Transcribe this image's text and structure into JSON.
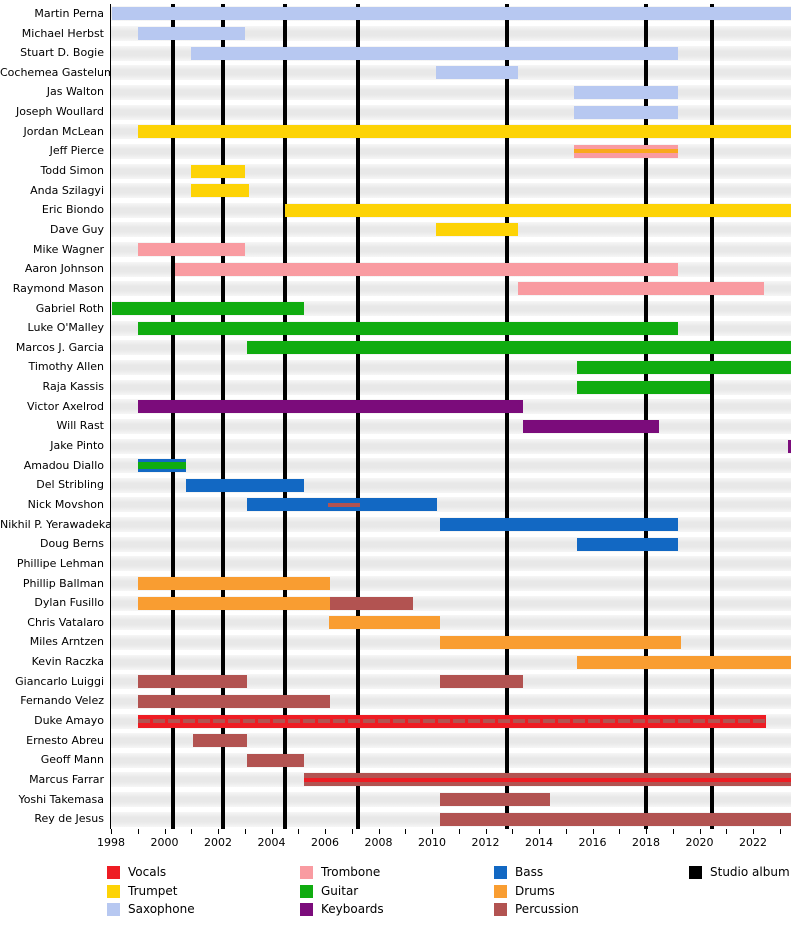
{
  "chart_data": {
    "type": "timeline",
    "x_axis": {
      "min": 1998,
      "max": 2023.42,
      "minor_tick_step": 1,
      "tick_labels": [
        "1998",
        "2000",
        "2002",
        "2004",
        "2006",
        "2008",
        "2010",
        "2012",
        "2014",
        "2016",
        "2018",
        "2020",
        "2022"
      ],
      "label_years": [
        1998,
        2000,
        2002,
        2004,
        2006,
        2008,
        2010,
        2012,
        2014,
        2016,
        2018,
        2020,
        2022
      ]
    },
    "grid": false,
    "legend_position": "bottom",
    "instrument_colors": {
      "Vocals": "#ee1c23",
      "Trumpet": "#fdd306",
      "Saxophone": "#b7c8f1",
      "Trombone": "#f99ba1",
      "Guitar": "#10ac10",
      "Keyboards": "#7b0c7b",
      "Bass": "#1268c3",
      "Drums": "#f99d31",
      "Percussion": "#b25351",
      "Studio album": "#000000"
    },
    "legend_columns": [
      [
        "Vocals",
        "Trumpet",
        "Saxophone"
      ],
      [
        "Trombone",
        "Guitar",
        "Keyboards"
      ],
      [
        "Bass",
        "Drums",
        "Percussion"
      ],
      [
        "Studio album"
      ]
    ],
    "studio_album_years": [
      2000.3,
      2002.2,
      2004.5,
      2007.25,
      2012.8,
      2018.0,
      2020.45
    ],
    "members": [
      {
        "name": "Martin Perna",
        "segments": [
          {
            "instrument": "Saxophone",
            "start": 1998.05,
            "end": 2023.42
          }
        ]
      },
      {
        "name": "Michael Herbst",
        "segments": [
          {
            "instrument": "Saxophone",
            "start": 1999.0,
            "end": 2003.0
          }
        ]
      },
      {
        "name": "Stuart D. Bogie",
        "segments": [
          {
            "instrument": "Saxophone",
            "start": 2001.0,
            "end": 2019.2
          }
        ]
      },
      {
        "name": "Cochemea Gastelum",
        "segments": [
          {
            "instrument": "Saxophone",
            "start": 2010.15,
            "end": 2013.2
          }
        ]
      },
      {
        "name": "Jas Walton",
        "segments": [
          {
            "instrument": "Saxophone",
            "start": 2015.3,
            "end": 2019.2
          }
        ]
      },
      {
        "name": "Joseph Woullard",
        "segments": [
          {
            "instrument": "Saxophone",
            "start": 2015.3,
            "end": 2019.2
          }
        ]
      },
      {
        "name": "Jordan McLean",
        "segments": [
          {
            "instrument": "Trumpet",
            "start": 1999.0,
            "end": 2023.42
          }
        ]
      },
      {
        "name": "Jeff Pierce",
        "segments": [
          {
            "instrument": "Trombone",
            "start": 2015.3,
            "end": 2019.2,
            "stripe": {
              "instrument": "Trumpet",
              "start": 2015.3,
              "end": 2019.2,
              "color": "#f9a81c"
            }
          }
        ]
      },
      {
        "name": "Todd Simon",
        "segments": [
          {
            "instrument": "Trumpet",
            "start": 2001.0,
            "end": 2003.0
          }
        ]
      },
      {
        "name": "Anda Szilagyi",
        "segments": [
          {
            "instrument": "Trumpet",
            "start": 2001.0,
            "end": 2003.15
          }
        ]
      },
      {
        "name": "Eric Biondo",
        "segments": [
          {
            "instrument": "Trumpet",
            "start": 2004.5,
            "end": 2023.42
          }
        ]
      },
      {
        "name": "Dave Guy",
        "segments": [
          {
            "instrument": "Trumpet",
            "start": 2010.15,
            "end": 2013.2
          }
        ]
      },
      {
        "name": "Mike Wagner",
        "segments": [
          {
            "instrument": "Trombone",
            "start": 1999.0,
            "end": 2003.0
          }
        ]
      },
      {
        "name": "Aaron Johnson",
        "segments": [
          {
            "instrument": "Trombone",
            "start": 2000.4,
            "end": 2019.2
          }
        ]
      },
      {
        "name": "Raymond Mason",
        "segments": [
          {
            "instrument": "Trombone",
            "start": 2013.2,
            "end": 2022.4
          }
        ]
      },
      {
        "name": "Gabriel Roth",
        "segments": [
          {
            "instrument": "Guitar",
            "start": 1998.05,
            "end": 2005.2
          }
        ]
      },
      {
        "name": "Luke O'Malley",
        "segments": [
          {
            "instrument": "Guitar",
            "start": 1999.0,
            "end": 2019.2
          }
        ]
      },
      {
        "name": "Marcos J. Garcia",
        "segments": [
          {
            "instrument": "Guitar",
            "start": 2003.1,
            "end": 2023.42
          }
        ]
      },
      {
        "name": "Timothy Allen",
        "segments": [
          {
            "instrument": "Guitar",
            "start": 2015.4,
            "end": 2023.42
          }
        ]
      },
      {
        "name": "Raja Kassis",
        "segments": [
          {
            "instrument": "Guitar",
            "start": 2015.4,
            "end": 2020.4
          }
        ]
      },
      {
        "name": "Victor Axelrod",
        "segments": [
          {
            "instrument": "Keyboards",
            "start": 1999.0,
            "end": 2013.4
          }
        ]
      },
      {
        "name": "Will Rast",
        "segments": [
          {
            "instrument": "Keyboards",
            "start": 2013.4,
            "end": 2018.5
          }
        ]
      },
      {
        "name": "Jake Pinto",
        "segments": [
          {
            "instrument": "Keyboards",
            "start": 2023.3,
            "end": 2023.42
          }
        ]
      },
      {
        "name": "Amadou Diallo",
        "segments": [
          {
            "instrument": "Bass",
            "start": 1999.0,
            "end": 2000.8,
            "stripe": {
              "instrument": "Guitar",
              "start": 1999.0,
              "end": 2000.8,
              "thick": true
            }
          }
        ]
      },
      {
        "name": "Del Stribling",
        "segments": [
          {
            "instrument": "Bass",
            "start": 2000.8,
            "end": 2005.2
          }
        ]
      },
      {
        "name": "Nick Movshon",
        "segments": [
          {
            "instrument": "Bass",
            "start": 2003.1,
            "end": 2010.2,
            "stripe": {
              "instrument": "Percussion",
              "start": 2006.1,
              "end": 2007.3
            }
          }
        ]
      },
      {
        "name": "Nikhil P. Yerawadekar",
        "segments": [
          {
            "instrument": "Bass",
            "start": 2010.3,
            "end": 2019.2
          }
        ]
      },
      {
        "name": "Doug Berns",
        "segments": [
          {
            "instrument": "Bass",
            "start": 2015.4,
            "end": 2019.2
          }
        ]
      },
      {
        "name": "Phillipe Lehman",
        "segments": []
      },
      {
        "name": "Phillip Ballman",
        "segments": [
          {
            "instrument": "Drums",
            "start": 1999.0,
            "end": 2006.2
          }
        ]
      },
      {
        "name": "Dylan Fusillo",
        "segments": [
          {
            "instrument": "Drums",
            "start": 1999.0,
            "end": 2006.2
          },
          {
            "instrument": "Percussion",
            "start": 2006.2,
            "end": 2009.3
          }
        ]
      },
      {
        "name": "Chris Vatalaro",
        "segments": [
          {
            "instrument": "Drums",
            "start": 2006.15,
            "end": 2010.3
          }
        ]
      },
      {
        "name": "Miles Arntzen",
        "segments": [
          {
            "instrument": "Drums",
            "start": 2010.3,
            "end": 2019.3
          }
        ]
      },
      {
        "name": "Kevin Raczka",
        "segments": [
          {
            "instrument": "Drums",
            "start": 2015.4,
            "end": 2023.42
          }
        ]
      },
      {
        "name": "Giancarlo Luiggi",
        "segments": [
          {
            "instrument": "Percussion",
            "start": 1999.0,
            "end": 2003.1
          },
          {
            "instrument": "Percussion",
            "start": 2010.3,
            "end": 2013.4
          }
        ]
      },
      {
        "name": "Fernando Velez",
        "segments": [
          {
            "instrument": "Percussion",
            "start": 1999.0,
            "end": 2006.2
          }
        ]
      },
      {
        "name": "Duke Amayo",
        "segments": [
          {
            "instrument": "Vocals",
            "start": 1999.0,
            "end": 2022.5,
            "stripe": {
              "instrument": "Percussion",
              "start": 1999.0,
              "end": 2022.5,
              "dashed": true
            }
          }
        ]
      },
      {
        "name": "Ernesto Abreu",
        "segments": [
          {
            "instrument": "Percussion",
            "start": 2001.05,
            "end": 2003.1
          }
        ]
      },
      {
        "name": "Geoff Mann",
        "segments": [
          {
            "instrument": "Percussion",
            "start": 2003.1,
            "end": 2005.2
          }
        ]
      },
      {
        "name": "Marcus Farrar",
        "segments": [
          {
            "instrument": "Percussion",
            "start": 2005.2,
            "end": 2023.42,
            "stripe": {
              "instrument": "Vocals",
              "start": 2005.2,
              "end": 2023.42
            }
          }
        ]
      },
      {
        "name": "Yoshi Takemasa",
        "segments": [
          {
            "instrument": "Percussion",
            "start": 2010.3,
            "end": 2014.4
          }
        ]
      },
      {
        "name": "Rey de Jesus",
        "segments": [
          {
            "instrument": "Percussion",
            "start": 2010.3,
            "end": 2023.42
          }
        ]
      }
    ]
  }
}
